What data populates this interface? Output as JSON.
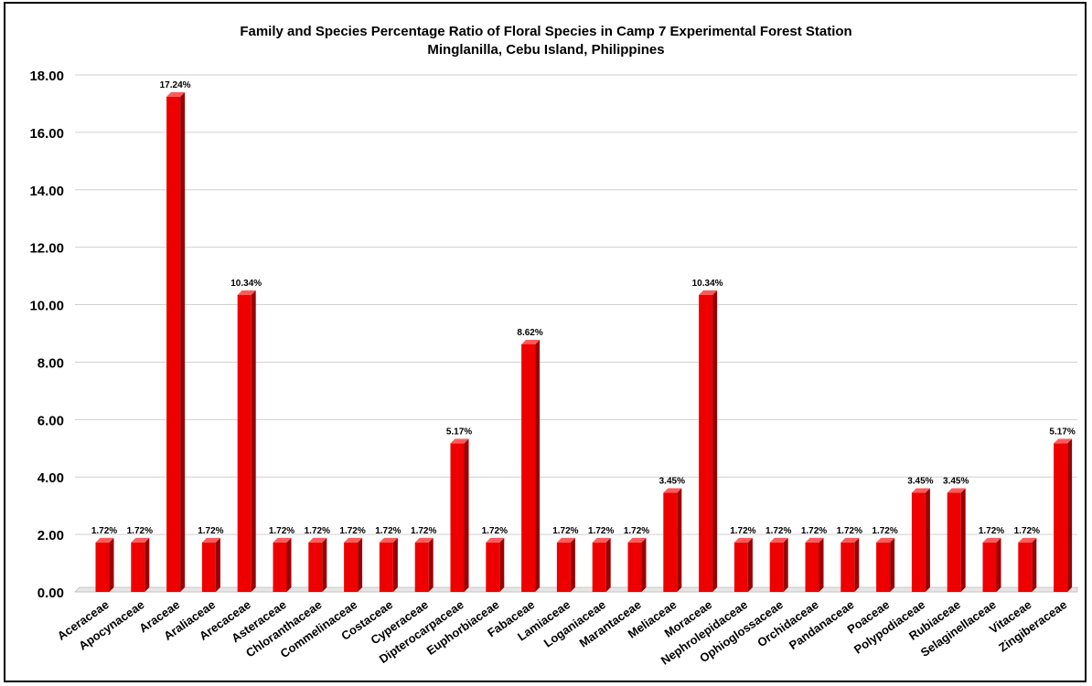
{
  "chart_data": {
    "type": "bar",
    "title": "Family and Species Percentage Ratio of Floral Species in Camp 7 Experimental Forest Station",
    "subtitle": "Minglanilla, Cebu Island, Philippines",
    "xlabel": "",
    "ylabel": "",
    "ylim": [
      0,
      18
    ],
    "yticks": [
      "0.00",
      "2.00",
      "4.00",
      "6.00",
      "8.00",
      "10.00",
      "12.00",
      "14.00",
      "16.00",
      "18.00"
    ],
    "grid": true,
    "legend": "none",
    "bar_color": "#ee0000",
    "categories": [
      "Aceraceae",
      "Apocynaceae",
      "Araceae",
      "Araliaceae",
      "Arecaceae",
      "Asteraceae",
      "Chloranthaceae",
      "Commelinaceae",
      "Costaceae",
      "Cyperaceae",
      "Dipterocarpaceae",
      "Euphorbiaceae",
      "Fabaceae",
      "Lamiaceae",
      "Loganiaceae",
      "Marantaceae",
      "Meliaceae",
      "Moraceae",
      "Nephrolepidaceae",
      "Ophioglossaceae",
      "Orchidaceae",
      "Pandanaceae",
      "Poaceae",
      "Polypodiaceae",
      "Rubiaceae",
      "Selaginellaceae",
      "Vitaceae",
      "Zingiberaceae"
    ],
    "values": [
      1.72,
      1.72,
      17.24,
      1.72,
      10.34,
      1.72,
      1.72,
      1.72,
      1.72,
      1.72,
      5.17,
      1.72,
      8.62,
      1.72,
      1.72,
      1.72,
      3.45,
      10.34,
      1.72,
      1.72,
      1.72,
      1.72,
      1.72,
      3.45,
      3.45,
      1.72,
      1.72,
      5.17
    ],
    "data_labels": [
      "1.72%",
      "1.72%",
      "17.24%",
      "1.72%",
      "10.34%",
      "1.72%",
      "1.72%",
      "1.72%",
      "1.72%",
      "1.72%",
      "5.17%",
      "1.72%",
      "8.62%",
      "1.72%",
      "1.72%",
      "1.72%",
      "3.45%",
      "10.34%",
      "1.72%",
      "1.72%",
      "1.72%",
      "1.72%",
      "1.72%",
      "3.45%",
      "3.45%",
      "1.72%",
      "1.72%",
      "5.17%"
    ]
  }
}
